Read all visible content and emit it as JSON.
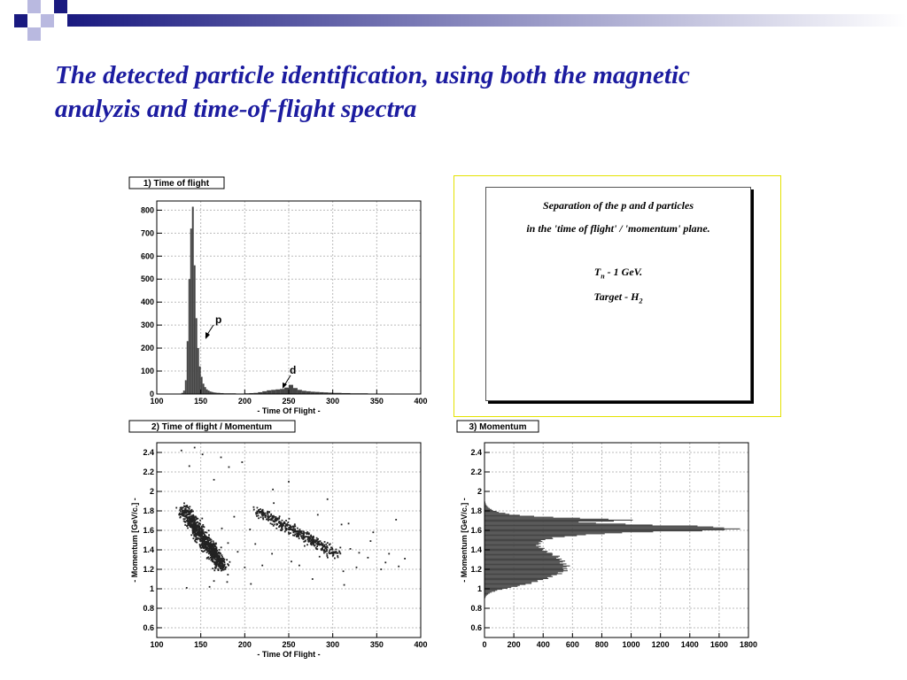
{
  "slide": {
    "title_lines": [
      "The detected particle identification, using both the magnetic",
      "analyzis and time-of-flight spectra"
    ],
    "colors": {
      "title": "#1c1ca0",
      "deco_dark": "#1a1a80",
      "deco_light": "#b9b9e0",
      "hist_fill": "#454545",
      "frame_yellow": "#e4e200"
    }
  },
  "info_box": {
    "line1": "Separation of the p and d particles",
    "line2": "in the 'time of flight' / 'momentum' plane.",
    "beam_symbol": "T",
    "beam_sub": "n",
    "beam_rest": " - 1 GeV.",
    "target_prefix": "Target - H",
    "target_sub": "2"
  },
  "chart_data": [
    {
      "type": "bar",
      "label": "1) Time of flight",
      "xlabel": "- Time Of Flight -",
      "ylabel": "",
      "xlim": [
        100,
        400
      ],
      "ylim": [
        0,
        840
      ],
      "xticks": [
        100,
        150,
        200,
        250,
        300,
        350,
        400
      ],
      "yticks": [
        0,
        100,
        200,
        300,
        400,
        500,
        600,
        700,
        800
      ],
      "grid": true,
      "bin_width": 2,
      "x": [
        126,
        128,
        130,
        132,
        134,
        136,
        138,
        140,
        142,
        144,
        146,
        148,
        150,
        152,
        154,
        156,
        158,
        160,
        162,
        164,
        166,
        168,
        170,
        172,
        174,
        176,
        178,
        180,
        185,
        190,
        195,
        200,
        205,
        210,
        215,
        220,
        225,
        230,
        235,
        240,
        245,
        250,
        255,
        260,
        265,
        270,
        275,
        280,
        285,
        290,
        295,
        300,
        310,
        320,
        330,
        340,
        350,
        360,
        370,
        380,
        390
      ],
      "values": [
        2,
        5,
        15,
        60,
        230,
        500,
        720,
        815,
        560,
        330,
        200,
        120,
        75,
        45,
        30,
        20,
        15,
        11,
        9,
        7,
        6,
        5,
        5,
        4,
        4,
        3,
        3,
        3,
        3,
        2,
        2,
        3,
        4,
        5,
        8,
        12,
        16,
        18,
        20,
        22,
        28,
        40,
        26,
        18,
        14,
        12,
        10,
        9,
        8,
        7,
        6,
        5,
        4,
        3,
        3,
        2,
        2,
        2,
        1,
        1,
        1
      ],
      "annotations": [
        {
          "text": "p",
          "x": 138,
          "y": 230
        },
        {
          "text": "d",
          "x": 247,
          "y": 35
        }
      ]
    },
    {
      "type": "scatter",
      "label": "2) Time of flight / Momentum",
      "xlabel": "- Time Of Flight -",
      "ylabel": "- Momentum [GeV/c.] -",
      "xlim": [
        100,
        400
      ],
      "ylim": [
        0.5,
        2.5
      ],
      "xticks": [
        100,
        150,
        200,
        250,
        300,
        350,
        400
      ],
      "yticks": [
        0.6,
        0.8,
        1,
        1.2,
        1.4,
        1.6,
        1.8,
        2,
        2.2,
        2.4
      ],
      "grid": true,
      "clusters": [
        {
          "name": "p",
          "from": [
            130,
            1.82
          ],
          "to": [
            175,
            1.22
          ],
          "spread": [
            7,
            0.07
          ],
          "count": 900
        },
        {
          "name": "d",
          "from": [
            215,
            1.8
          ],
          "to": [
            305,
            1.35
          ],
          "spread": [
            6,
            0.05
          ],
          "count": 420
        }
      ],
      "sparse_points": [
        [
          128,
          2.42
        ],
        [
          143,
          2.45
        ],
        [
          152,
          2.38
        ],
        [
          137,
          2.26
        ],
        [
          173,
          2.35
        ],
        [
          165,
          2.12
        ],
        [
          250,
          2.1
        ],
        [
          182,
          2.25
        ],
        [
          197,
          2.3
        ],
        [
          232,
          2.02
        ],
        [
          233,
          1.88
        ],
        [
          294,
          1.92
        ],
        [
          255,
          1.55
        ],
        [
          372,
          1.71
        ],
        [
          310,
          1.66
        ],
        [
          318,
          1.67
        ],
        [
          343,
          1.49
        ],
        [
          375,
          1.23
        ],
        [
          355,
          1.2
        ],
        [
          405,
          1.28
        ],
        [
          360,
          1.27
        ],
        [
          312,
          1.18
        ],
        [
          313,
          1.04
        ],
        [
          207,
          1.05
        ],
        [
          180,
          1.07
        ],
        [
          165,
          1.08
        ],
        [
          212,
          1.46
        ],
        [
          200,
          1.22
        ],
        [
          268,
          1.44
        ],
        [
          330,
          1.37
        ],
        [
          285,
          1.33
        ],
        [
          181,
          1.47
        ],
        [
          192,
          1.38
        ],
        [
          220,
          1.24
        ],
        [
          253,
          1.28
        ],
        [
          297,
          1.46
        ],
        [
          160,
          1.02
        ],
        [
          134,
          1.01
        ],
        [
          248,
          1.66
        ],
        [
          273,
          1.57
        ],
        [
          320,
          1.41
        ],
        [
          340,
          1.32
        ],
        [
          364,
          1.36
        ],
        [
          382,
          1.31
        ],
        [
          262,
          1.24
        ],
        [
          277,
          1.1
        ],
        [
          231,
          1.36
        ],
        [
          206,
          1.61
        ],
        [
          188,
          1.74
        ],
        [
          174,
          1.62
        ],
        [
          239,
          1.72
        ],
        [
          283,
          1.76
        ],
        [
          346,
          1.58
        ],
        [
          327,
          1.22
        ]
      ]
    },
    {
      "type": "bar",
      "orientation": "horizontal",
      "label": "3) Momentum",
      "xlabel": "",
      "ylabel": "- Momentum [GeV/c.] -",
      "xlim": [
        0,
        1800
      ],
      "ylim": [
        0.5,
        2.5
      ],
      "xticks": [
        0,
        200,
        400,
        600,
        800,
        1000,
        1200,
        1400,
        1600,
        1800
      ],
      "yticks": [
        0.6,
        0.8,
        1,
        1.2,
        1.4,
        1.6,
        1.8,
        2,
        2.2,
        2.4
      ],
      "grid": true,
      "bin_width": 0.01,
      "y": [
        0.9,
        0.92,
        0.94,
        0.96,
        0.98,
        1,
        1.02,
        1.04,
        1.06,
        1.08,
        1.1,
        1.12,
        1.14,
        1.16,
        1.18,
        1.2,
        1.22,
        1.24,
        1.26,
        1.28,
        1.3,
        1.32,
        1.34,
        1.36,
        1.38,
        1.4,
        1.42,
        1.44,
        1.46,
        1.48,
        1.5,
        1.52,
        1.54,
        1.56,
        1.58,
        1.6,
        1.62,
        1.64,
        1.66,
        1.68,
        1.7,
        1.72,
        1.74,
        1.76,
        1.78,
        1.8,
        1.82,
        1.84,
        1.86,
        1.88,
        1.9
      ],
      "values": [
        5,
        10,
        25,
        50,
        90,
        150,
        220,
        280,
        330,
        380,
        420,
        460,
        500,
        520,
        540,
        550,
        560,
        550,
        540,
        530,
        520,
        510,
        480,
        440,
        420,
        400,
        380,
        370,
        370,
        390,
        420,
        480,
        600,
        800,
        1150,
        1680,
        1720,
        1400,
        950,
        650,
        1050,
        620,
        330,
        170,
        100,
        60,
        35,
        20,
        10,
        6,
        3
      ]
    }
  ]
}
